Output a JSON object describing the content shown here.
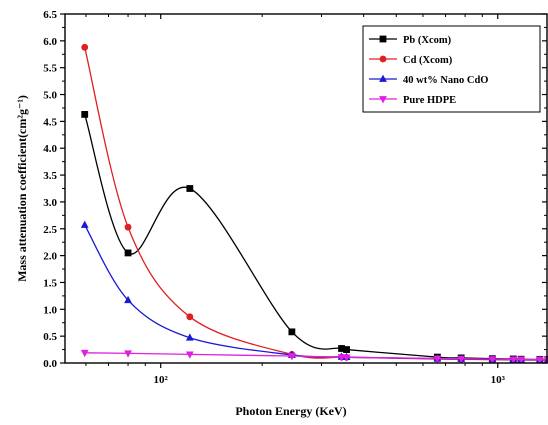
{
  "chart_data": {
    "type": "line",
    "xlabel": "Photon Energy (KeV)",
    "ylabel": "Mass attenuation coefficient(cm²g⁻¹)",
    "xscale": "log",
    "xlim": [
      52,
      1400
    ],
    "ylim": [
      0,
      6.5
    ],
    "x_ticks": [
      100,
      1000
    ],
    "x_tick_labels": [
      "10²",
      "10³"
    ],
    "y_ticks": [
      0.0,
      0.5,
      1.0,
      1.5,
      2.0,
      2.5,
      3.0,
      3.5,
      4.0,
      4.5,
      5.0,
      5.5,
      6.0,
      6.5
    ],
    "y_tick_labels": [
      "0.0",
      "0.5",
      "1.0",
      "1.5",
      "2.0",
      "2.5",
      "3.0",
      "3.5",
      "4.0",
      "4.5",
      "5.0",
      "5.5",
      "6.0",
      "6.5"
    ],
    "grid": false,
    "legend_position": "top-right",
    "series": [
      {
        "name": "Pb (Xcom)",
        "color": "#000000",
        "marker": "square",
        "x": [
          59.5,
          80,
          122,
          245,
          344,
          356,
          662,
          779,
          964,
          1112,
          1173,
          1333,
          1408
        ],
        "y": [
          4.63,
          2.05,
          3.25,
          0.58,
          0.27,
          0.25,
          0.11,
          0.095,
          0.08,
          0.075,
          0.07,
          0.065,
          0.063
        ]
      },
      {
        "name": "Cd (Xcom)",
        "color": "#e02020",
        "marker": "circle",
        "x": [
          59.5,
          80,
          122,
          245,
          344,
          356,
          662,
          779,
          964,
          1112,
          1173,
          1333,
          1408
        ],
        "y": [
          5.88,
          2.53,
          0.86,
          0.16,
          0.11,
          0.105,
          0.075,
          0.07,
          0.062,
          0.058,
          0.056,
          0.053,
          0.051
        ]
      },
      {
        "name": "40 wt% Nano CdO",
        "color": "#1a1ad6",
        "marker": "triangle-up",
        "x": [
          59.5,
          80,
          122,
          245,
          344,
          356,
          662,
          779,
          964,
          1112,
          1173,
          1333,
          1408
        ],
        "y": [
          2.57,
          1.17,
          0.47,
          0.15,
          0.115,
          0.11,
          0.08,
          0.075,
          0.068,
          0.064,
          0.062,
          0.058,
          0.056
        ]
      },
      {
        "name": "Pure HDPE",
        "color": "#e020e0",
        "marker": "triangle-down",
        "x": [
          59.5,
          80,
          122,
          245,
          344,
          356,
          662,
          779,
          964,
          1112,
          1173,
          1333,
          1408
        ],
        "y": [
          0.19,
          0.18,
          0.16,
          0.13,
          0.11,
          0.105,
          0.085,
          0.08,
          0.072,
          0.068,
          0.066,
          0.062,
          0.06
        ]
      }
    ]
  }
}
